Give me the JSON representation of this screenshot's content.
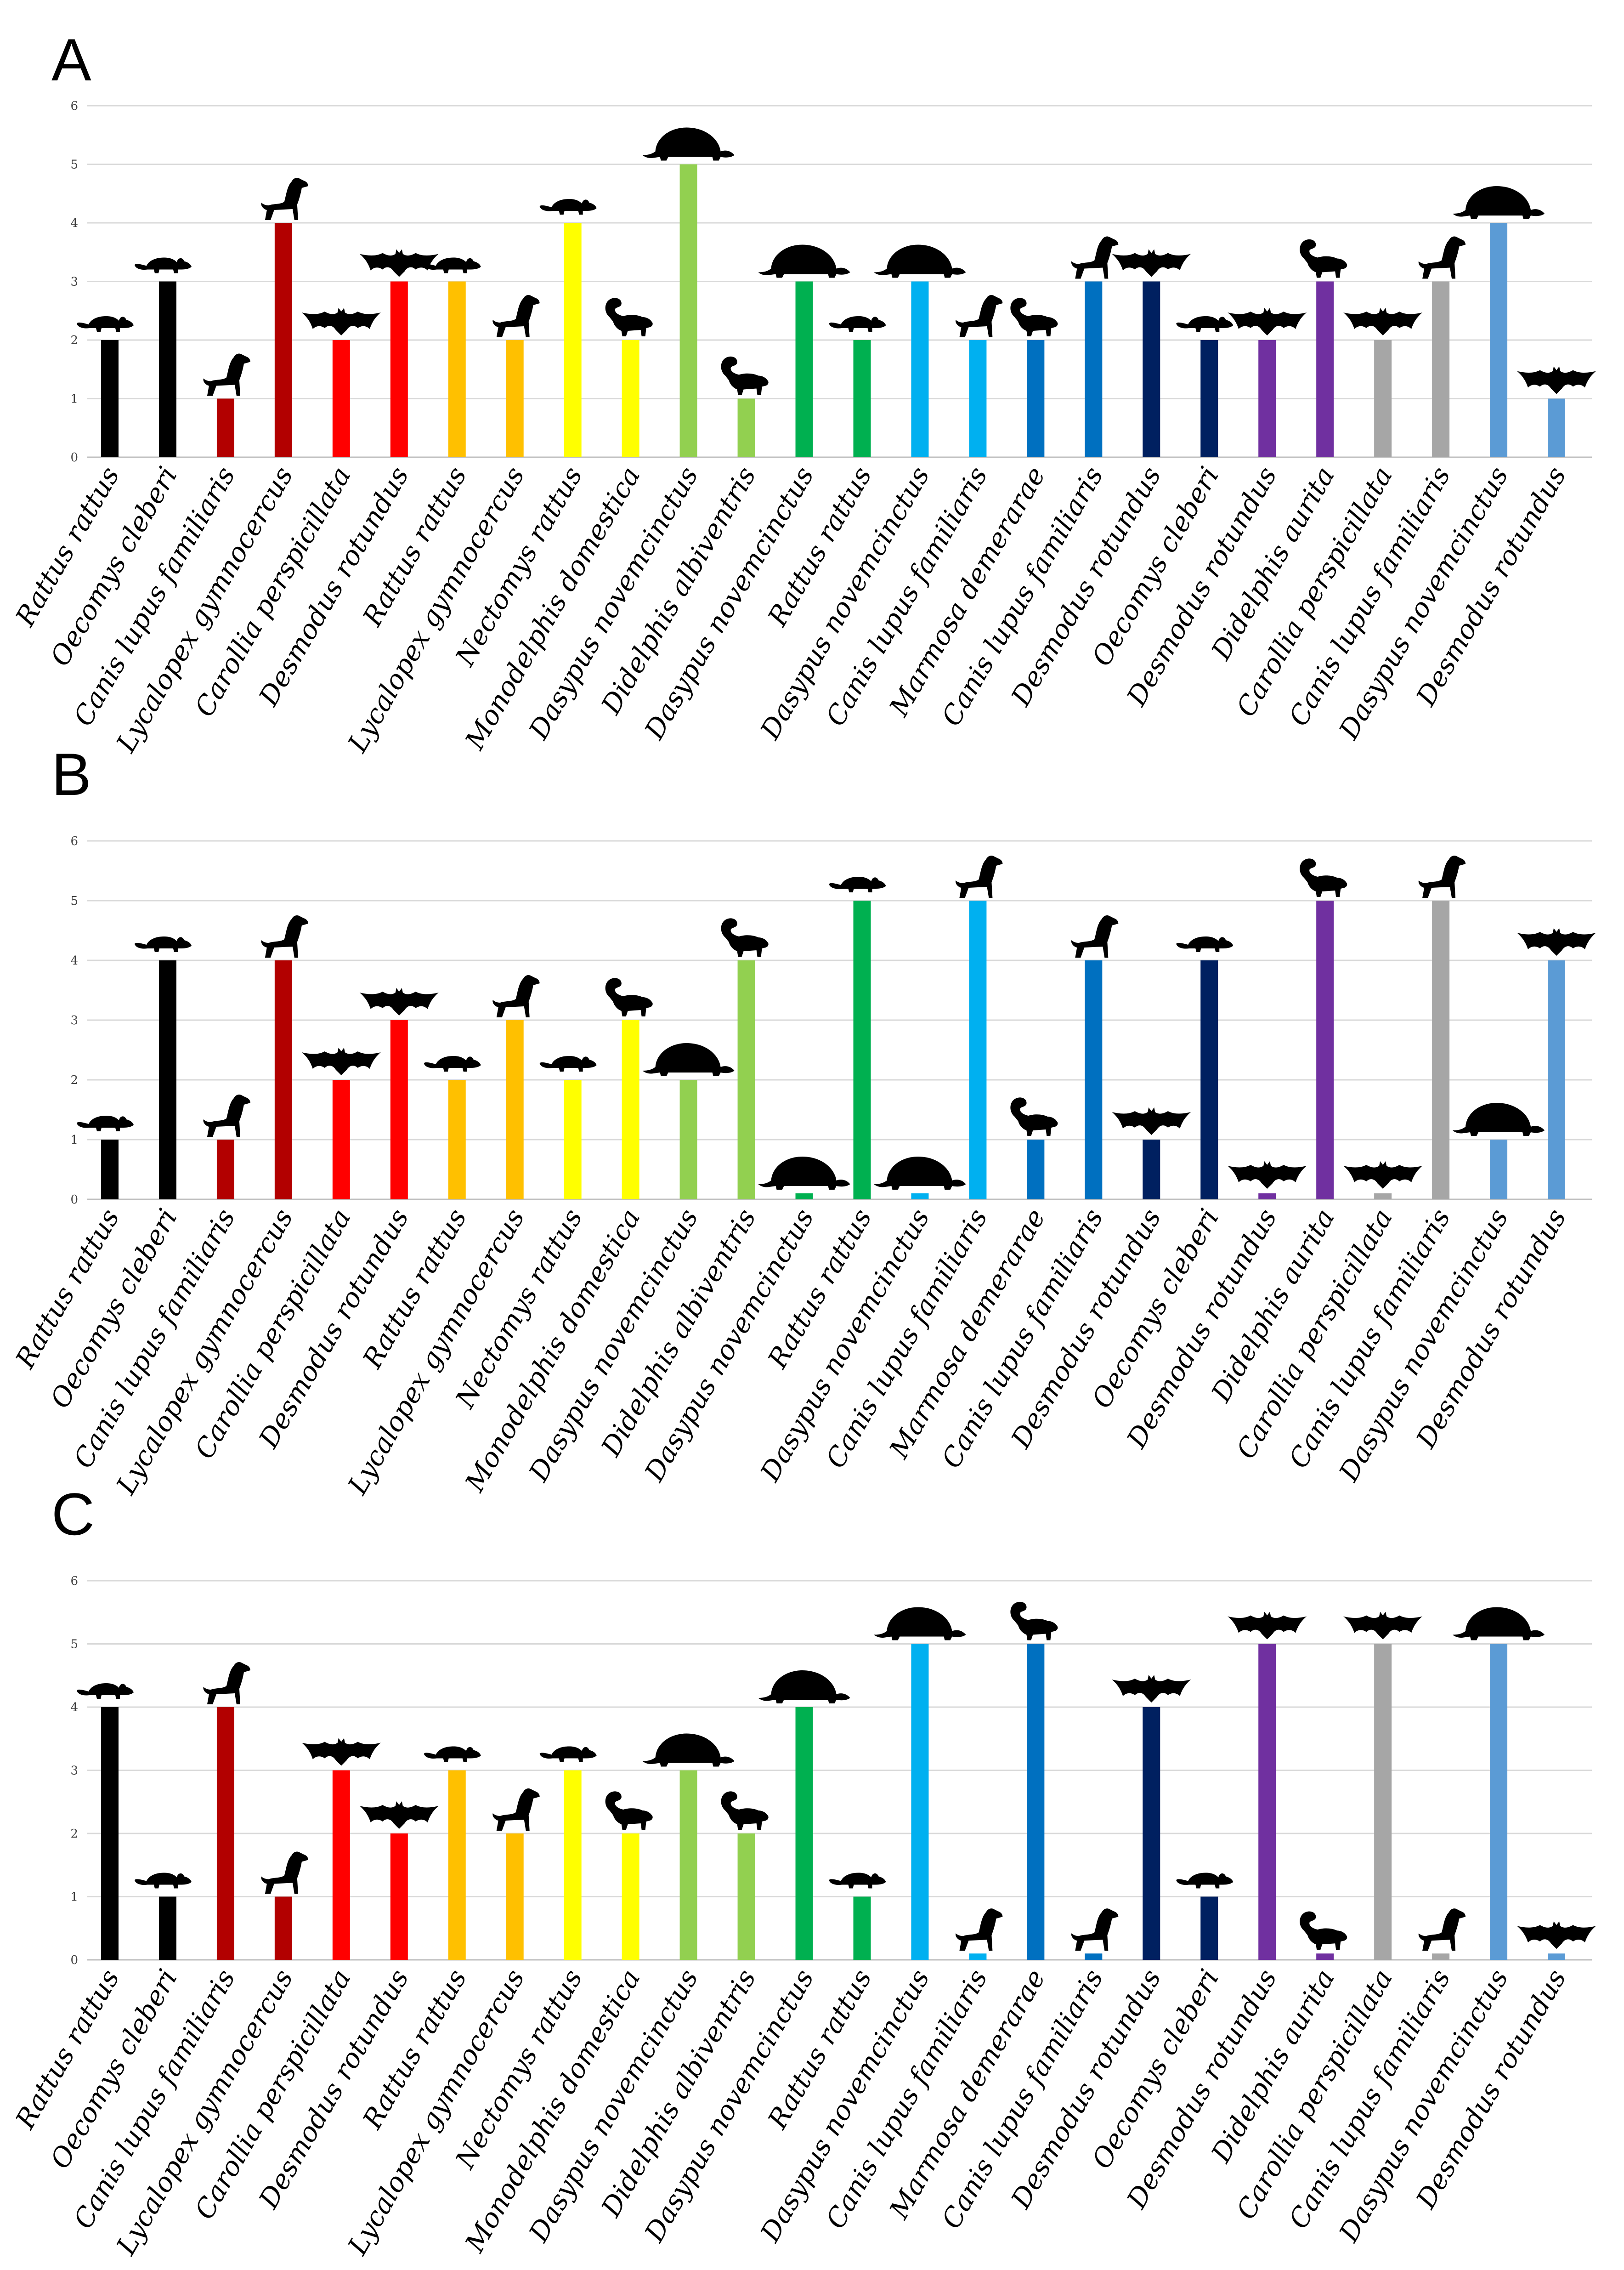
{
  "chart_data": [
    {
      "type": "bar",
      "panel": "A",
      "ylim": [
        0,
        6
      ],
      "yticks": [
        "0",
        "1",
        "2",
        "3",
        "4",
        "5",
        "6"
      ],
      "grid": true,
      "categories": [
        "Rattus rattus",
        "Oecomys cleberi",
        "Canis lupus familiaris",
        "Lycalopex gymnocercus",
        "Carollia perspicillata",
        "Desmodus rotundus",
        "Rattus rattus",
        "Lycalopex gymnocercus",
        "Nectomys rattus",
        "Monodelphis domestica",
        "Dasypus novemcinctus",
        "Didelphis albiventris",
        "Dasypus novemcinctus",
        "Rattus rattus",
        "Dasypus novemcinctus",
        "Canis lupus familiaris",
        "Marmosa demerarae",
        "Canis lupus familiaris",
        "Desmodus rotundus",
        "Oecomys cleberi",
        "Desmodus rotundus",
        "Didelphis aurita",
        "Carollia perspicillata",
        "Canis lupus familiaris",
        "Dasypus novemcinctus",
        "Desmodus rotundus"
      ],
      "values": [
        2,
        3,
        1,
        4,
        2,
        3,
        3,
        2,
        4,
        2,
        5,
        1,
        3,
        2,
        3,
        2,
        2,
        3,
        3,
        2,
        2,
        3,
        2,
        3,
        4,
        1
      ],
      "icons": [
        "rat-icon",
        "rat-icon",
        "dog-icon",
        "dog-icon",
        "bat-icon",
        "bat-icon",
        "rat-icon",
        "dog-icon",
        "rat-icon",
        "opossum-icon",
        "armadillo-icon",
        "opossum-icon",
        "armadillo-icon",
        "rat-icon",
        "armadillo-icon",
        "dog-icon",
        "opossum-icon",
        "dog-icon",
        "bat-icon",
        "rat-icon",
        "bat-icon",
        "opossum-icon",
        "bat-icon",
        "dog-icon",
        "armadillo-icon",
        "bat-icon"
      ],
      "colors": [
        "#000000",
        "#000000",
        "#b20000",
        "#b20000",
        "#ff0000",
        "#ff0000",
        "#ffc000",
        "#ffc000",
        "#ffff00",
        "#ffff00",
        "#92d050",
        "#92d050",
        "#00b050",
        "#00b050",
        "#00b0f0",
        "#00b0f0",
        "#0070c0",
        "#0070c0",
        "#002060",
        "#002060",
        "#7030a0",
        "#7030a0",
        "#a6a6a6",
        "#a6a6a6",
        "#5b9bd5",
        "#5b9bd5"
      ]
    },
    {
      "type": "bar",
      "panel": "B",
      "ylim": [
        0,
        6
      ],
      "yticks": [
        "0",
        "1",
        "2",
        "3",
        "4",
        "5",
        "6"
      ],
      "grid": true,
      "categories": [
        "Rattus rattus",
        "Oecomys cleberi",
        "Canis lupus familiaris",
        "Lycalopex gymnocercus",
        "Carollia perspicillata",
        "Desmodus rotundus",
        "Rattus rattus",
        "Lycalopex gymnocercus",
        "Nectomys rattus",
        "Monodelphis domestica",
        "Dasypus novemcinctus",
        "Didelphis albiventris",
        "Dasypus novemcinctus",
        "Rattus rattus",
        "Dasypus novemcinctus",
        "Canis lupus familiaris",
        "Marmosa demerarae",
        "Canis lupus familiaris",
        "Desmodus rotundus",
        "Oecomys cleberi",
        "Desmodus rotundus",
        "Didelphis aurita",
        "Carollia perspicillata",
        "Canis lupus familiaris",
        "Dasypus novemcinctus",
        "Desmodus rotundus"
      ],
      "values": [
        1,
        4,
        1,
        4,
        2,
        3,
        2,
        3,
        2,
        3,
        2,
        4,
        0.1,
        5,
        0.1,
        5,
        1,
        4,
        1,
        4,
        0.1,
        5,
        0.1,
        5,
        1,
        4
      ],
      "icons": [
        "rat-icon",
        "rat-icon",
        "dog-icon",
        "dog-icon",
        "bat-icon",
        "bat-icon",
        "rat-icon",
        "dog-icon",
        "rat-icon",
        "opossum-icon",
        "armadillo-icon",
        "opossum-icon",
        "armadillo-icon",
        "rat-icon",
        "armadillo-icon",
        "dog-icon",
        "opossum-icon",
        "dog-icon",
        "bat-icon",
        "rat-icon",
        "bat-icon",
        "opossum-icon",
        "bat-icon",
        "dog-icon",
        "armadillo-icon",
        "bat-icon"
      ],
      "colors": [
        "#000000",
        "#000000",
        "#b20000",
        "#b20000",
        "#ff0000",
        "#ff0000",
        "#ffc000",
        "#ffc000",
        "#ffff00",
        "#ffff00",
        "#92d050",
        "#92d050",
        "#00b050",
        "#00b050",
        "#00b0f0",
        "#00b0f0",
        "#0070c0",
        "#0070c0",
        "#002060",
        "#002060",
        "#7030a0",
        "#7030a0",
        "#a6a6a6",
        "#a6a6a6",
        "#5b9bd5",
        "#5b9bd5"
      ]
    },
    {
      "type": "bar",
      "panel": "C",
      "ylim": [
        0,
        6
      ],
      "yticks": [
        "0",
        "1",
        "2",
        "3",
        "4",
        "5",
        "6"
      ],
      "grid": true,
      "categories": [
        "Rattus rattus",
        "Oecomys cleberi",
        "Canis lupus familiaris",
        "Lycalopex gymnocercus",
        "Carollia perspicillata",
        "Desmodus rotundus",
        "Rattus rattus",
        "Lycalopex gymnocercus",
        "Nectomys rattus",
        "Monodelphis domestica",
        "Dasypus novemcinctus",
        "Didelphis albiventris",
        "Dasypus novemcinctus",
        "Rattus rattus",
        "Dasypus novemcinctus",
        "Canis lupus familiaris",
        "Marmosa demerarae",
        "Canis lupus familiaris",
        "Desmodus rotundus",
        "Oecomys cleberi",
        "Desmodus rotundus",
        "Didelphis aurita",
        "Carollia perspicillata",
        "Canis lupus familiaris",
        "Dasypus novemcinctus",
        "Desmodus rotundus"
      ],
      "values": [
        4,
        1,
        4,
        1,
        3,
        2,
        3,
        2,
        3,
        2,
        3,
        2,
        4,
        1,
        5,
        0.1,
        5,
        0.1,
        4,
        1,
        5,
        0.1,
        5,
        0.1,
        5,
        0.1
      ],
      "icons": [
        "rat-icon",
        "rat-icon",
        "dog-icon",
        "dog-icon",
        "bat-icon",
        "bat-icon",
        "rat-icon",
        "dog-icon",
        "rat-icon",
        "opossum-icon",
        "armadillo-icon",
        "opossum-icon",
        "armadillo-icon",
        "rat-icon",
        "armadillo-icon",
        "dog-icon",
        "opossum-icon",
        "dog-icon",
        "bat-icon",
        "rat-icon",
        "bat-icon",
        "opossum-icon",
        "bat-icon",
        "dog-icon",
        "armadillo-icon",
        "bat-icon"
      ],
      "colors": [
        "#000000",
        "#000000",
        "#b20000",
        "#b20000",
        "#ff0000",
        "#ff0000",
        "#ffc000",
        "#ffc000",
        "#ffff00",
        "#ffff00",
        "#92d050",
        "#92d050",
        "#00b050",
        "#00b050",
        "#00b0f0",
        "#00b0f0",
        "#0070c0",
        "#0070c0",
        "#002060",
        "#002060",
        "#7030a0",
        "#7030a0",
        "#a6a6a6",
        "#a6a6a6",
        "#5b9bd5",
        "#5b9bd5"
      ]
    }
  ]
}
